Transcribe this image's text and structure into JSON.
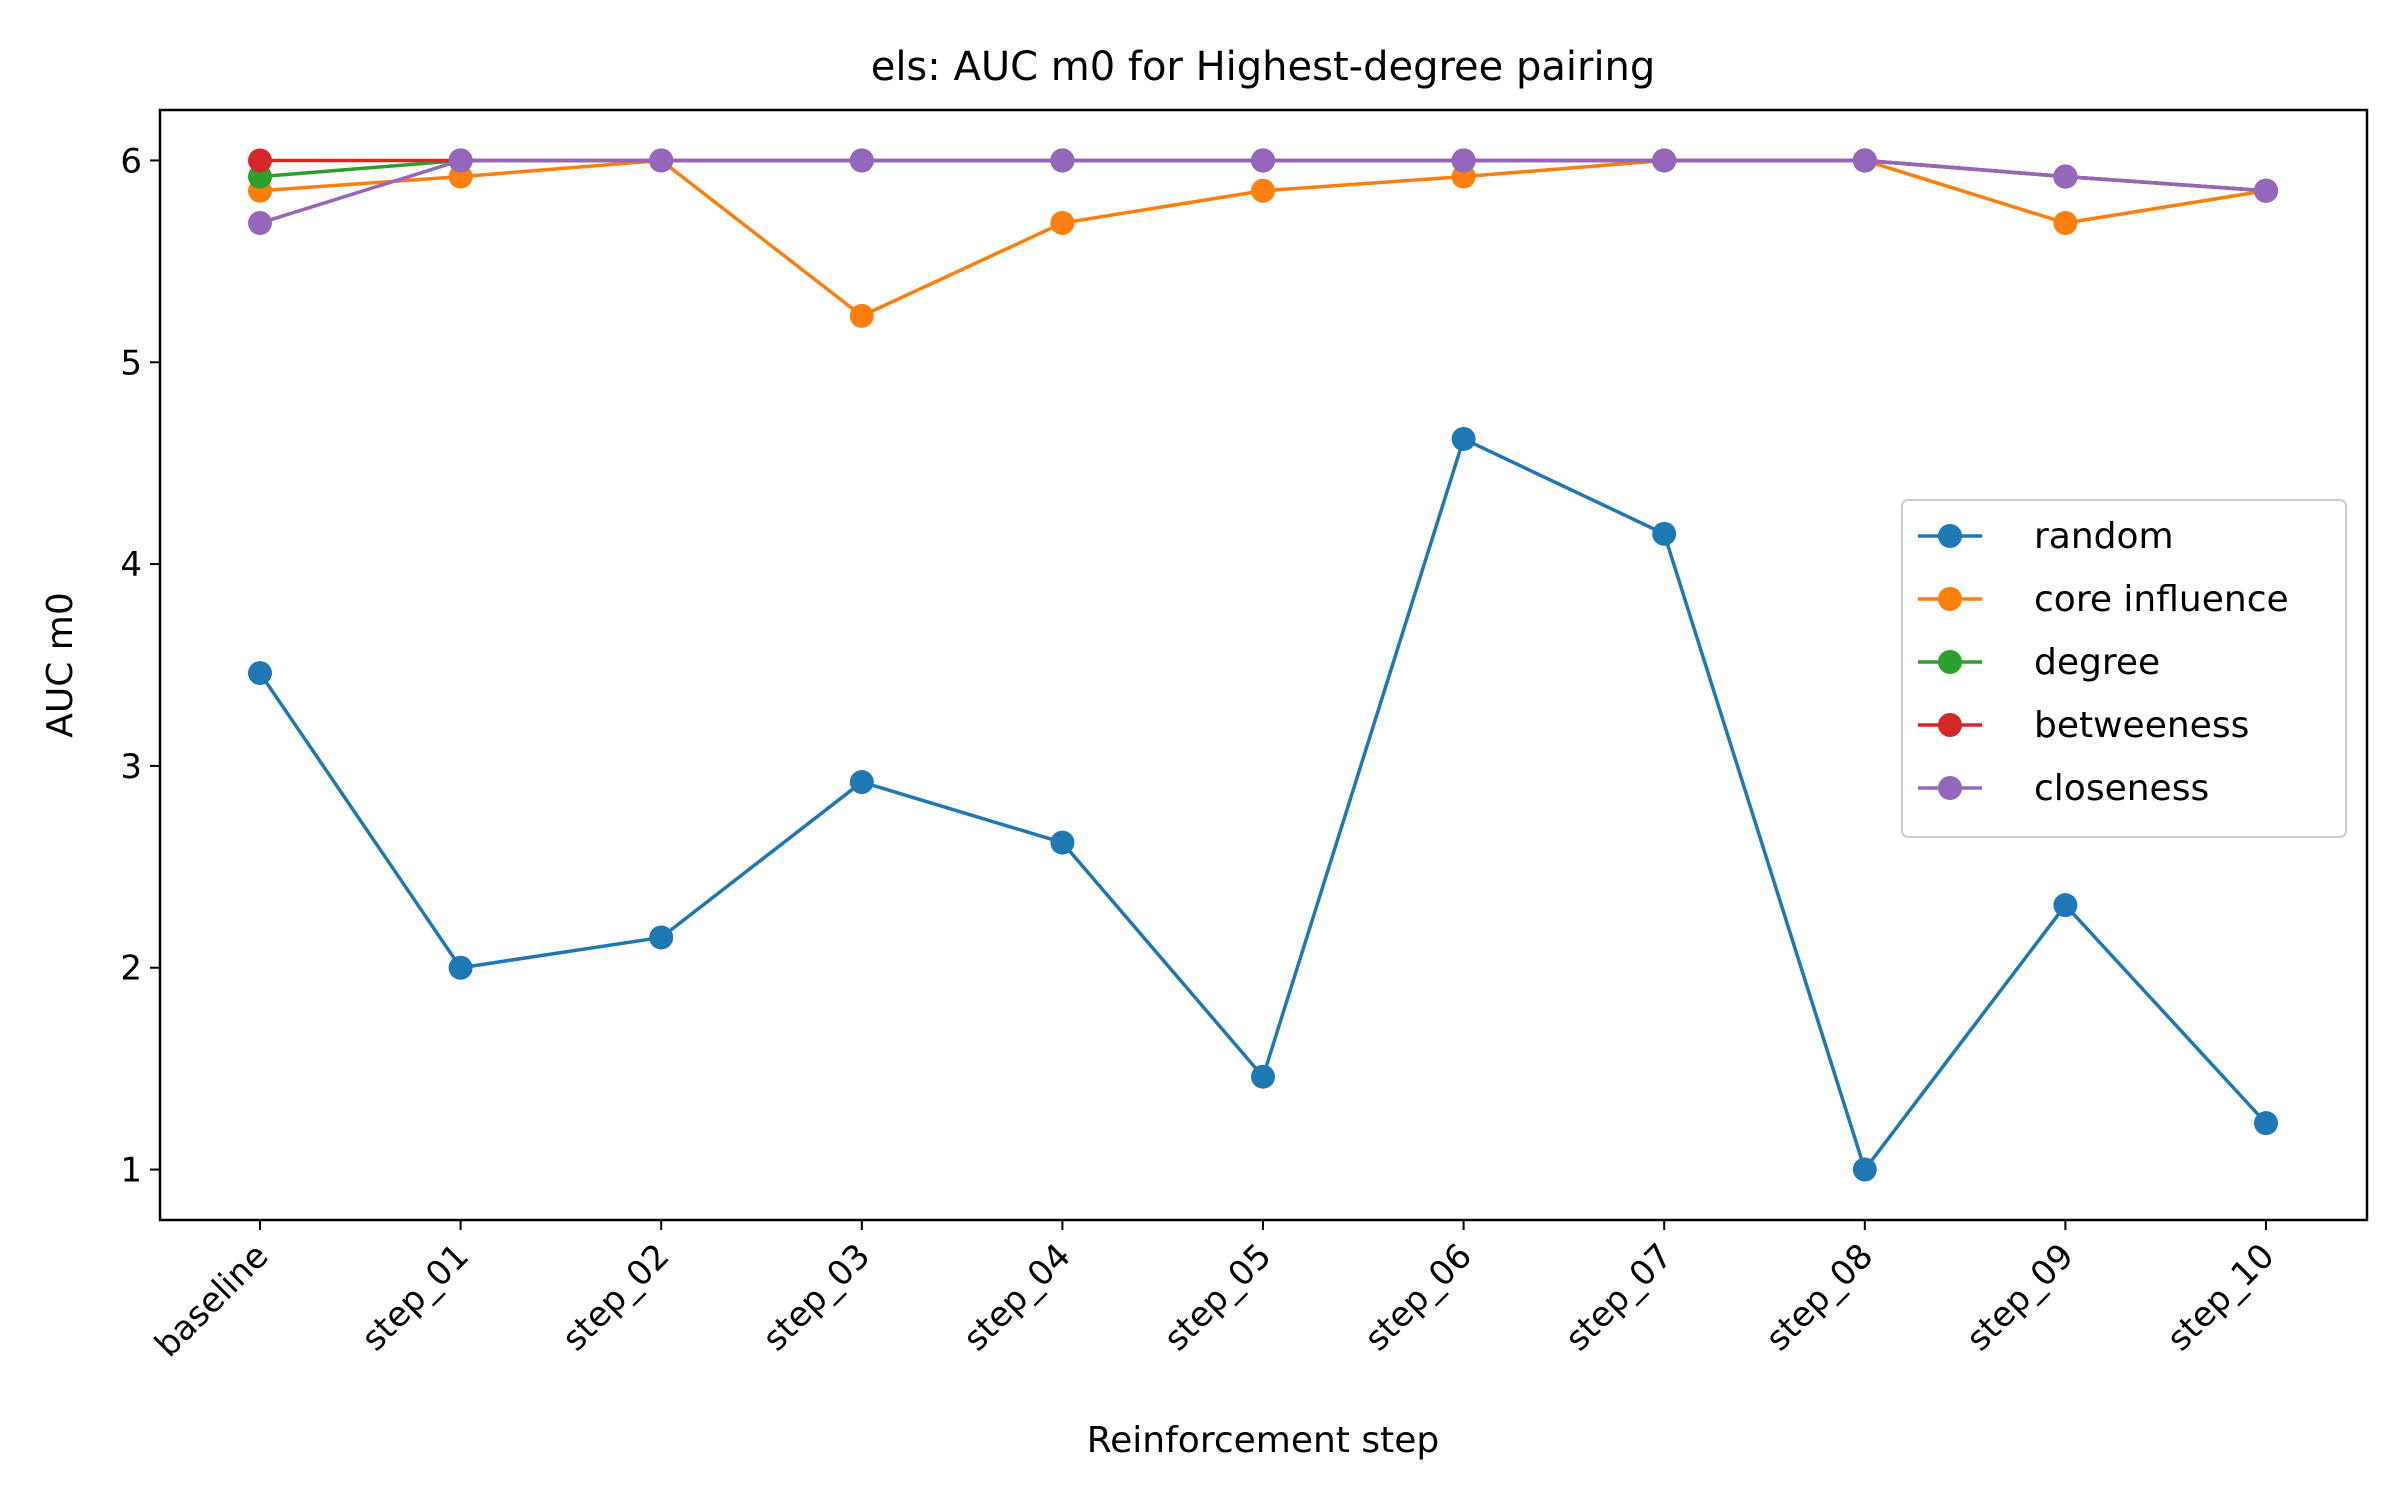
{
  "chart_data": {
    "type": "line",
    "title": "els: AUC m0 for Highest-degree pairing",
    "xlabel": "Reinforcement step",
    "ylabel": "AUC m0",
    "categories": [
      "baseline",
      "step_01",
      "step_02",
      "step_03",
      "step_04",
      "step_05",
      "step_06",
      "step_07",
      "step_08",
      "step_09",
      "step_10"
    ],
    "yticks": [
      1,
      2,
      3,
      4,
      5,
      6
    ],
    "ylim": [
      0.75,
      6.25
    ],
    "grid": false,
    "legend_position": "center-right",
    "marker": "circle",
    "series": [
      {
        "name": "random",
        "color": "#1f77b4",
        "values": [
          3.46,
          2.0,
          2.15,
          2.92,
          2.62,
          1.46,
          4.62,
          4.15,
          1.0,
          2.31,
          1.23
        ]
      },
      {
        "name": "core influence",
        "color": "#ff7f0e",
        "values": [
          5.85,
          5.92,
          6.0,
          5.23,
          5.69,
          5.85,
          5.92,
          6.0,
          6.0,
          5.69,
          5.85
        ]
      },
      {
        "name": "degree",
        "color": "#2ca02c",
        "values": [
          5.92,
          6.0,
          6.0,
          6.0,
          6.0,
          6.0,
          6.0,
          6.0,
          6.0,
          5.92,
          5.85
        ]
      },
      {
        "name": "betweeness",
        "color": "#d62728",
        "values": [
          6.0,
          6.0,
          6.0,
          6.0,
          6.0,
          6.0,
          6.0,
          6.0,
          6.0,
          5.92,
          5.85
        ]
      },
      {
        "name": "closeness",
        "color": "#9467bd",
        "values": [
          5.69,
          6.0,
          6.0,
          6.0,
          6.0,
          6.0,
          6.0,
          6.0,
          6.0,
          5.92,
          5.85
        ]
      }
    ]
  }
}
